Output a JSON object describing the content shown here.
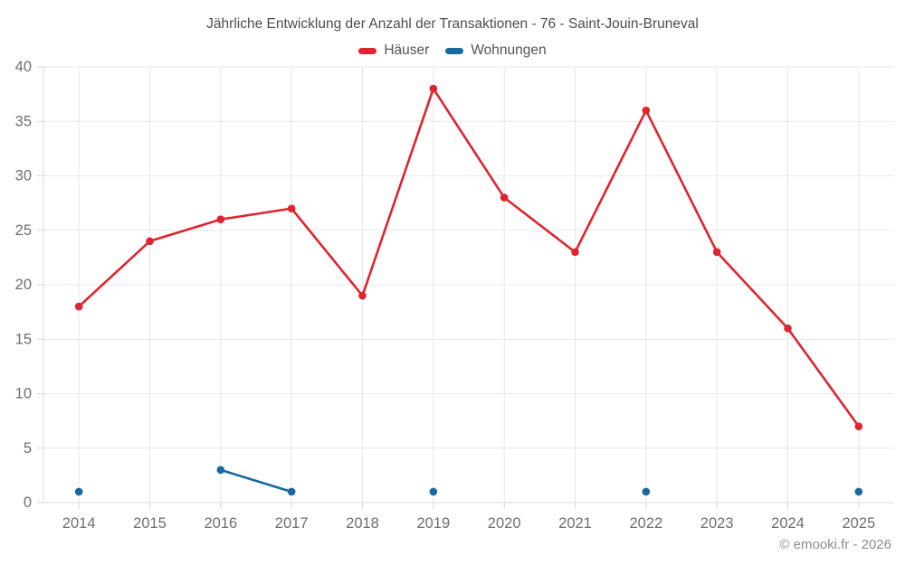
{
  "chart_data": {
    "type": "line",
    "title": "Jährliche Entwicklung der Anzahl der Transaktionen - 76 - Saint-Jouin-Bruneval",
    "categories": [
      "2014",
      "2015",
      "2016",
      "2017",
      "2018",
      "2019",
      "2020",
      "2021",
      "2022",
      "2023",
      "2024",
      "2025"
    ],
    "series": [
      {
        "name": "Häuser",
        "color": "#de242e",
        "values": [
          18,
          24,
          26,
          27,
          19,
          38,
          28,
          23,
          36,
          23,
          16,
          7
        ]
      },
      {
        "name": "Wohnungen",
        "color": "#1769a0",
        "values": [
          1,
          null,
          3,
          1,
          null,
          1,
          null,
          null,
          1,
          null,
          null,
          1
        ]
      }
    ],
    "xlabel": "",
    "ylabel": "",
    "ylim": [
      0,
      40
    ],
    "ytick_step": 5,
    "grid": true,
    "legend_position": "top"
  },
  "footer": {
    "copyright": "© emooki.fr - 2026"
  },
  "theme": {
    "background": "#ffffff",
    "grid_color": "#e7e7e7",
    "axis_color": "#d8d8d8",
    "tick_label_color": "#6e6e6e",
    "title_color": "#4d4d4d",
    "legend_label_color": "#555555",
    "copyright_color": "#8c8c8c"
  }
}
